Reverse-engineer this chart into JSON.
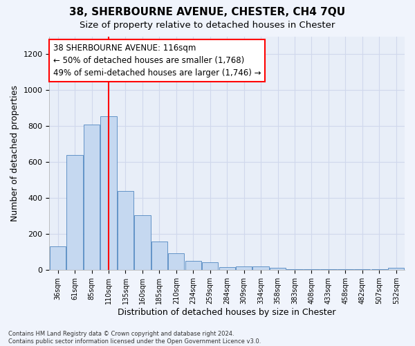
{
  "title": "38, SHERBOURNE AVENUE, CHESTER, CH4 7QU",
  "subtitle": "Size of property relative to detached houses in Chester",
  "xlabel": "Distribution of detached houses by size in Chester",
  "ylabel": "Number of detached properties",
  "footer_line1": "Contains HM Land Registry data © Crown copyright and database right 2024.",
  "footer_line2": "Contains public sector information licensed under the Open Government Licence v3.0.",
  "annotation_line1": "38 SHERBOURNE AVENUE: 116sqm",
  "annotation_line2": "← 50% of detached houses are smaller (1,768)",
  "annotation_line3": "49% of semi-detached houses are larger (1,746) →",
  "bar_color": "#c5d8f0",
  "bar_edge_color": "#4f86c0",
  "vline_color": "red",
  "vline_x": 3.0,
  "categories": [
    "36sqm",
    "61sqm",
    "85sqm",
    "110sqm",
    "135sqm",
    "160sqm",
    "185sqm",
    "210sqm",
    "234sqm",
    "259sqm",
    "284sqm",
    "309sqm",
    "334sqm",
    "358sqm",
    "383sqm",
    "408sqm",
    "433sqm",
    "458sqm",
    "482sqm",
    "507sqm",
    "532sqm"
  ],
  "values": [
    130,
    640,
    808,
    855,
    440,
    305,
    157,
    93,
    50,
    40,
    15,
    18,
    18,
    10,
    5,
    3,
    2,
    2,
    2,
    2,
    10
  ],
  "ylim": [
    0,
    1300
  ],
  "yticks": [
    0,
    200,
    400,
    600,
    800,
    1000,
    1200
  ],
  "background_color": "#f0f4fc",
  "plot_background_color": "#e8eef8",
  "grid_color": "#d0d8ec",
  "title_fontsize": 11,
  "subtitle_fontsize": 9.5,
  "annotation_box_edge_color": "red",
  "annotation_fontsize": 8.5,
  "figsize": [
    6.0,
    5.0
  ],
  "dpi": 100
}
